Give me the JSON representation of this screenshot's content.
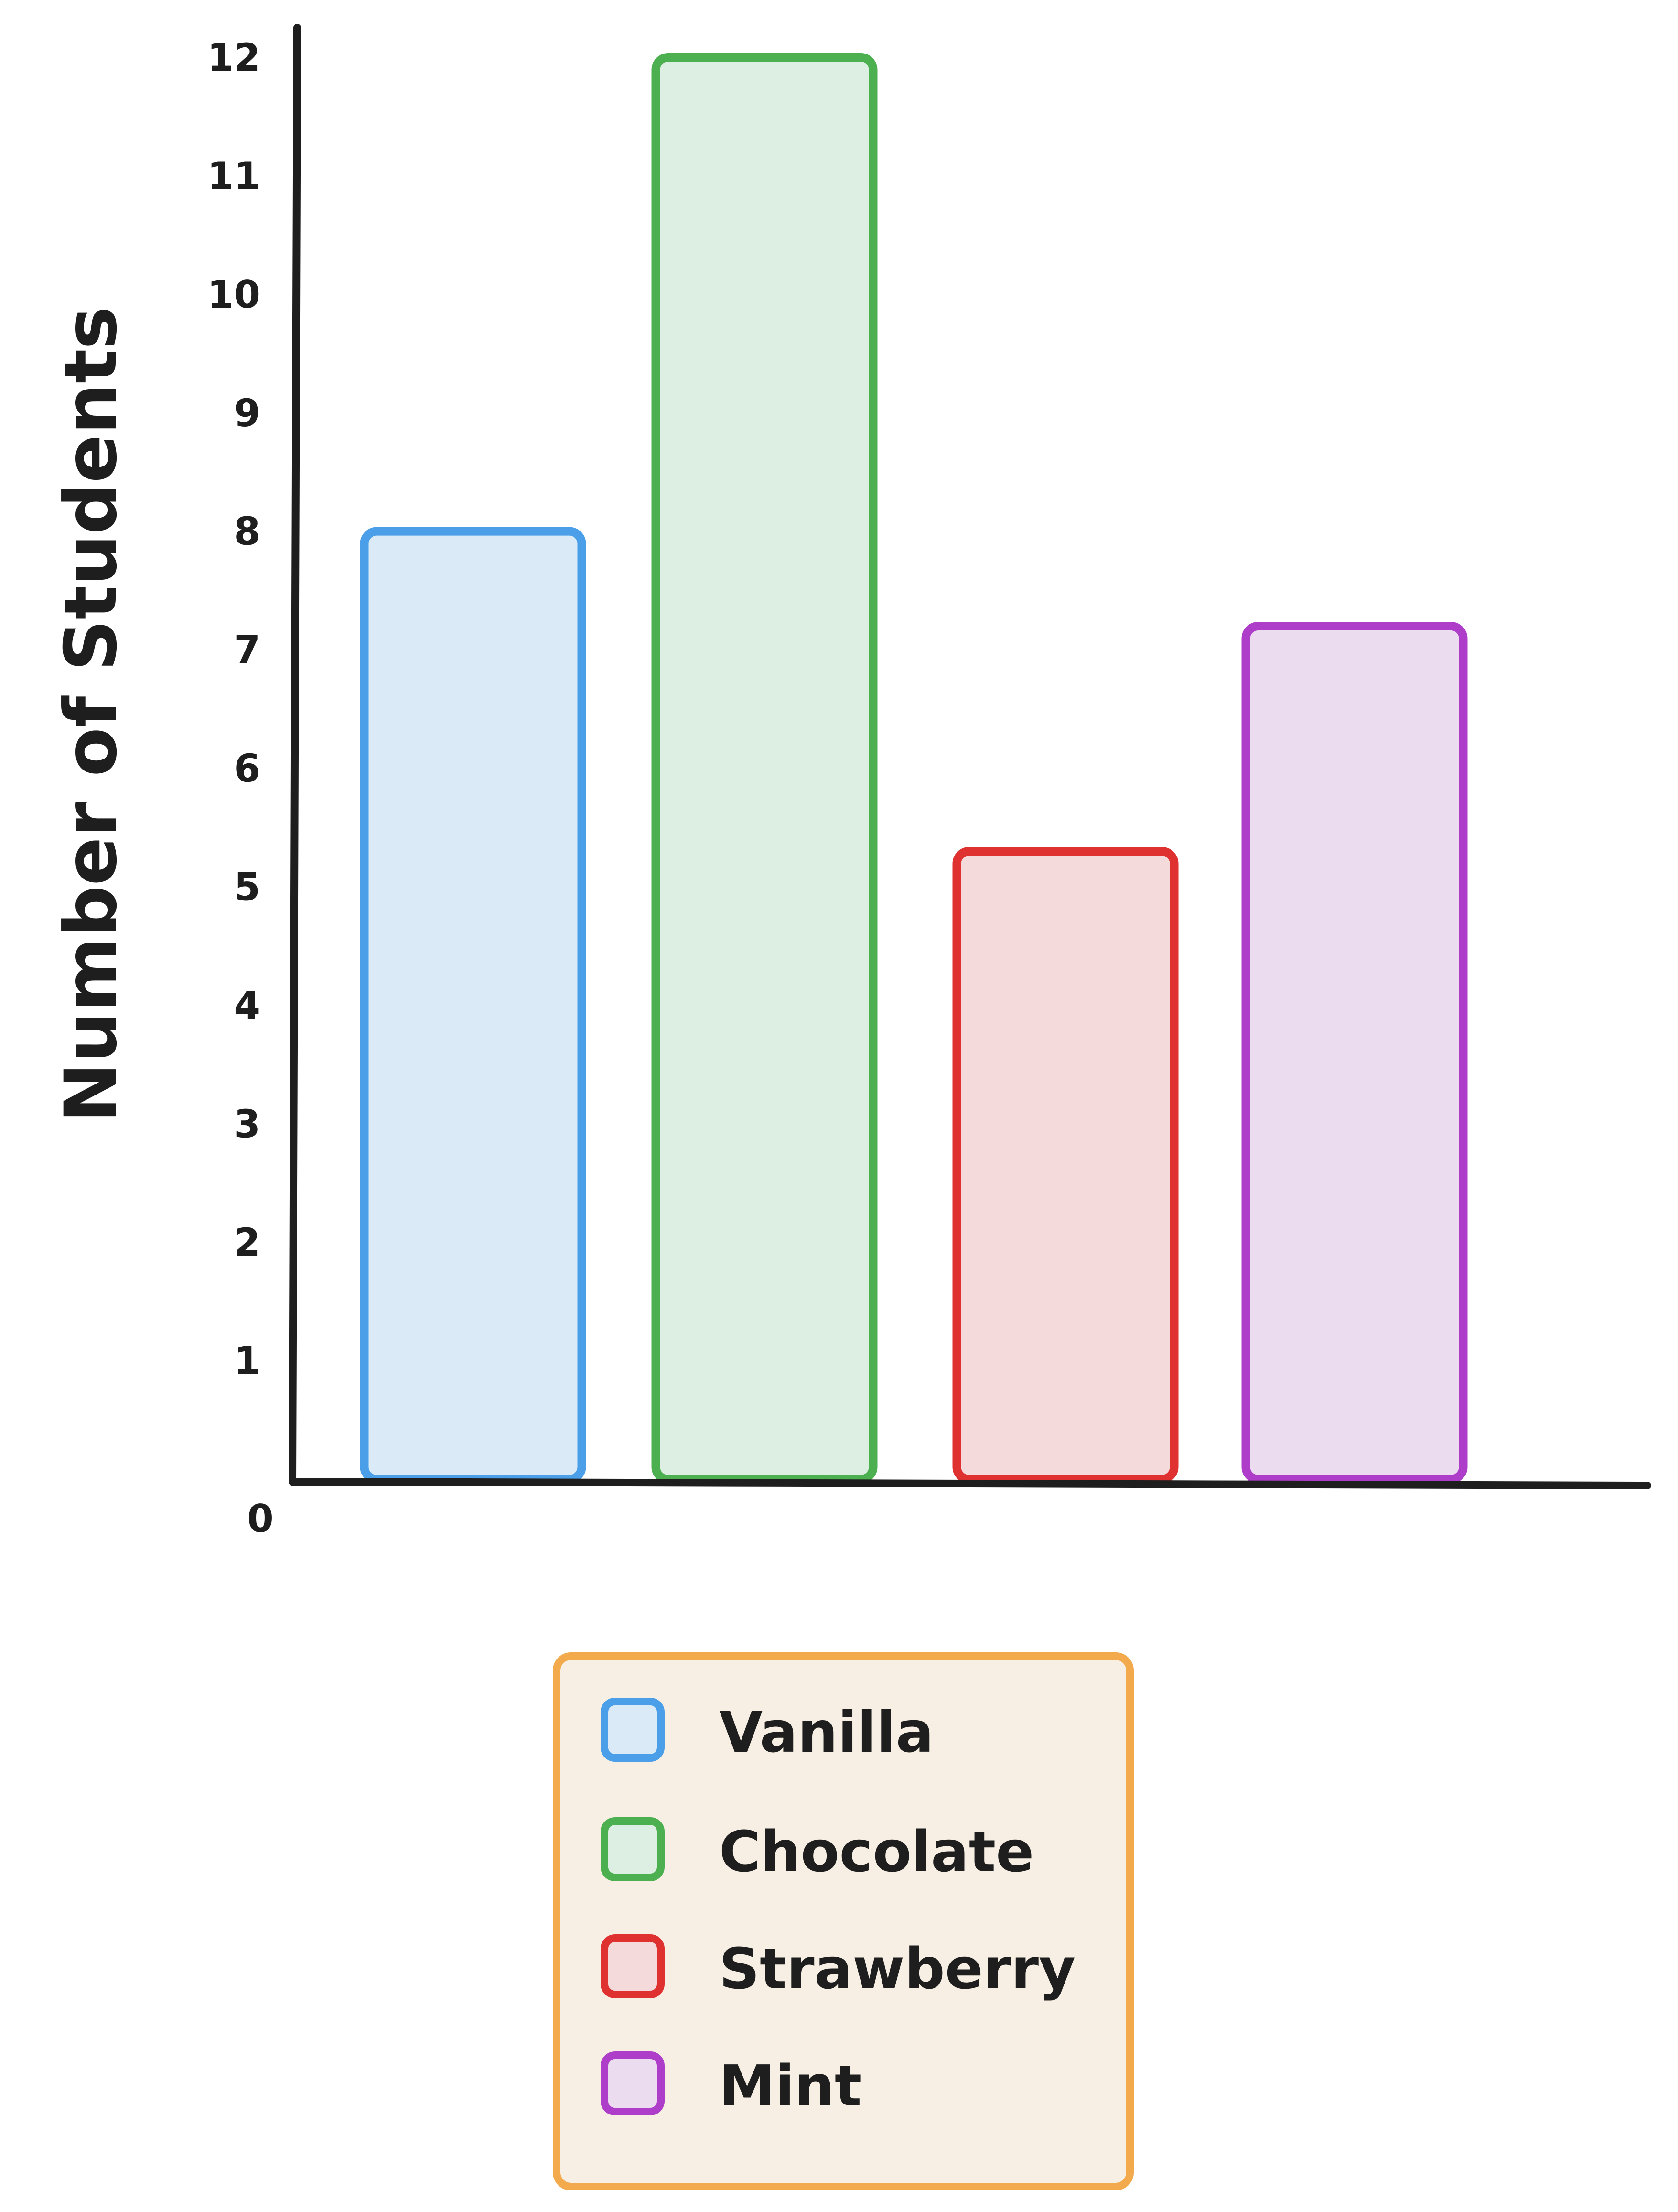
{
  "chart_data": {
    "type": "bar",
    "categories": [
      "Vanilla",
      "Chocolate",
      "Strawberry",
      "Mint"
    ],
    "values": [
      8,
      12,
      5.3,
      7.2
    ],
    "ylabel": "Number of Students",
    "xlabel": "",
    "ylim": [
      0,
      12
    ],
    "yticks": [
      "0",
      "1",
      "2",
      "3",
      "4",
      "5",
      "6",
      "7",
      "8",
      "9",
      "10",
      "11",
      "12"
    ],
    "grid": false,
    "legend": {
      "placement": "bottom-center",
      "entries": [
        "Vanilla",
        "Chocolate",
        "Strawberry",
        "Mint"
      ]
    },
    "colors": {
      "stroke": [
        "#4a9fe8",
        "#4caf50",
        "#e03131",
        "#ae3ec9"
      ],
      "fill": [
        "#dbeaf7",
        "#dcefe2",
        "#f5dadb",
        "#ebdcef"
      ],
      "legend_border": "#f2aa4c",
      "legend_background": "#f7efe4",
      "axis": "#1e1e1e"
    }
  }
}
